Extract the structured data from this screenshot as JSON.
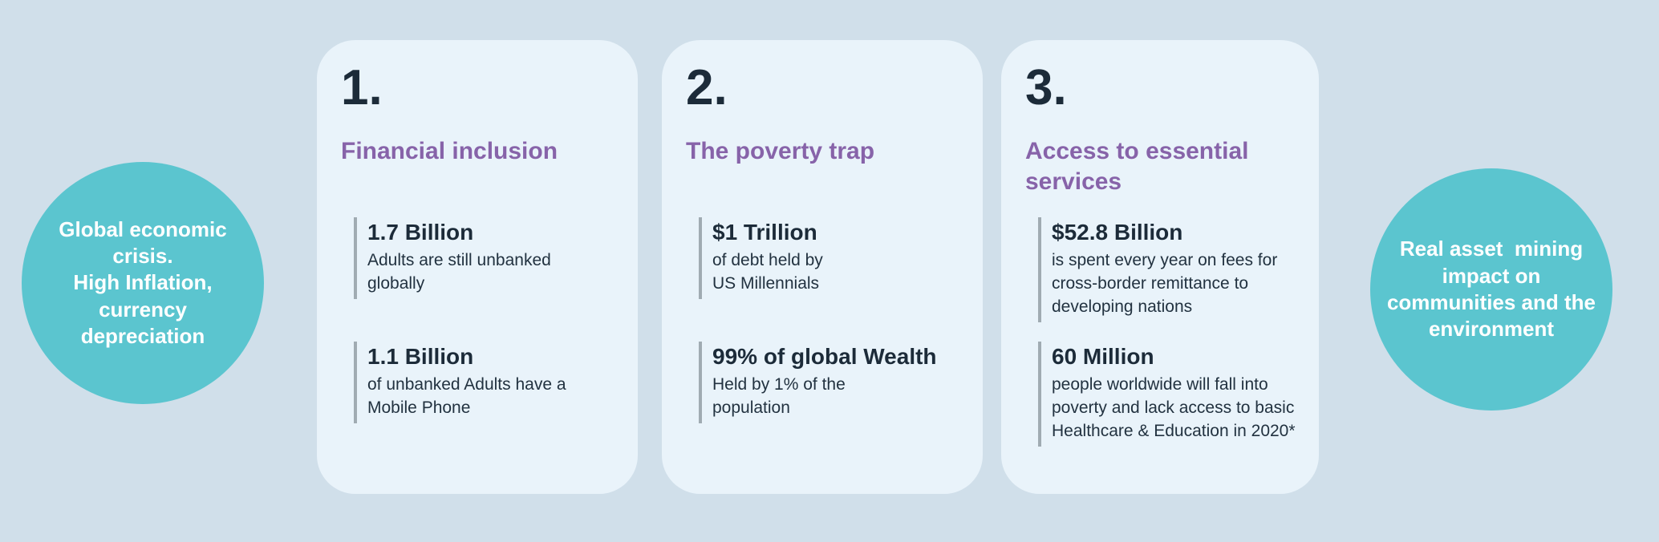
{
  "colors": {
    "page_background": "#d0dfea",
    "card_background": "#e9f3fa",
    "bubble_teal": "#5bc5cf",
    "title_purple": "#8763a9",
    "text_dark": "#1c2b39",
    "stat_bar_gray": "#a0abb2",
    "bubble_text_white": "#ffffff"
  },
  "left_bubble": {
    "text": "Global economic\ncrisis.\nHigh Inflation,\ncurrency\ndepreciation"
  },
  "right_bubble": {
    "text": "Real asset  mining\nimpact on\ncommunities and the\nenvironment"
  },
  "cards": [
    {
      "number": "1.",
      "title": "Financial inclusion",
      "stats": [
        {
          "value": "1.7 Billion",
          "desc": "Adults are still unbanked\nglobally"
        },
        {
          "value": "1.1 Billion",
          "desc": "of unbanked Adults have a\nMobile Phone"
        }
      ]
    },
    {
      "number": "2.",
      "title": "The poverty trap",
      "stats": [
        {
          "value": "$1 Trillion",
          "desc": "of debt held by\nUS Millennials"
        },
        {
          "value": "99% of global Wealth",
          "desc": "Held by 1% of the\npopulation"
        }
      ]
    },
    {
      "number": "3.",
      "title": "Access to essential\nservices",
      "stats": [
        {
          "value": "$52.8 Billion",
          "desc": "is spent every year on fees for\ncross-border remittance to\ndeveloping nations"
        },
        {
          "value": "60 Million",
          "desc": "people worldwide will fall into\npoverty and lack access to basic\nHealthcare & Education in 2020*"
        }
      ]
    }
  ]
}
